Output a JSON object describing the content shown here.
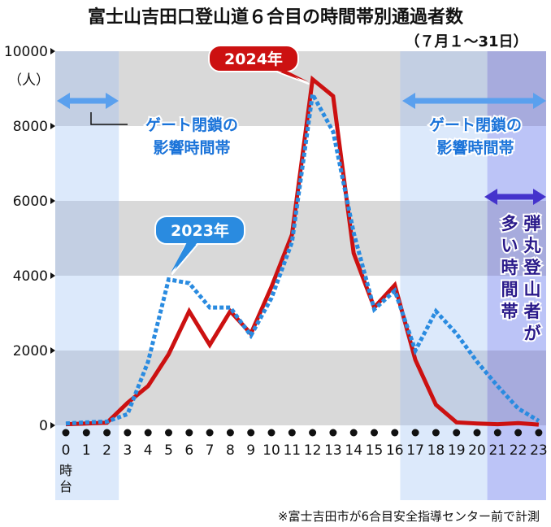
{
  "title": "富士山吉田口登山道６合目の時間帯別通過者数",
  "subtitle": "（７月１～31日）",
  "footnote": "※富士吉田市が6合目安全指導センター前で計測",
  "colors": {
    "band_gray": "#d9d9d9",
    "gate_light": "#dce9fb",
    "gate_mid": "#c3cfe3",
    "bullet_light": "#bcc4f7",
    "bullet_mid": "#a7abdd",
    "series_2024": "#cc1111",
    "series_2023": "#2a8be0",
    "arrow_gate": "#5aa0ee",
    "arrow_bullet": "#4433cc",
    "annotation_text": "#1a73d9",
    "bullet_text": "#2a1a8a"
  },
  "annotations": {
    "gate_left": "ゲート閉鎖の\n影響時間帯",
    "gate_right": "ゲート閉鎖の\n影響時間帯",
    "bullet": "弾丸登山者が多い時間帯",
    "bullet_col1": "弾丸登山者が",
    "bullet_col2": "多い時間帯"
  },
  "chart_data": {
    "type": "line",
    "title": "富士山吉田口登山道６合目の時間帯別通過者数",
    "subtitle": "（７月１～31日）",
    "ylabel": "（人）",
    "xlabel": "",
    "x_unit_label": "時台",
    "ylim": [
      0,
      10000
    ],
    "yticks": [
      0,
      2000,
      4000,
      6000,
      8000,
      10000
    ],
    "ytick_labels": [
      "0",
      "2000",
      "4000",
      "6000",
      "8000",
      "10000"
    ],
    "grid": false,
    "x": [
      0,
      1,
      2,
      3,
      4,
      5,
      6,
      7,
      8,
      9,
      10,
      11,
      12,
      13,
      14,
      15,
      16,
      17,
      18,
      19,
      20,
      21,
      22,
      23
    ],
    "x_labels": [
      "0",
      "1",
      "2",
      "3",
      "4",
      "5",
      "6",
      "7",
      "8",
      "9",
      "10",
      "11",
      "12",
      "13",
      "14",
      "15",
      "16",
      "17",
      "18",
      "19",
      "20",
      "21",
      "22",
      "23"
    ],
    "series": [
      {
        "name": "2023年",
        "style": "dashed",
        "values": [
          50,
          80,
          100,
          300,
          1700,
          3900,
          3800,
          3150,
          3150,
          2400,
          3400,
          4900,
          8850,
          7850,
          5150,
          3100,
          3600,
          2000,
          3050,
          2450,
          1700,
          1050,
          450,
          120
        ]
      },
      {
        "name": "2024年",
        "style": "solid",
        "values": [
          30,
          50,
          70,
          600,
          1050,
          1900,
          3050,
          2150,
          3050,
          2450,
          3700,
          5100,
          9250,
          8800,
          4600,
          3150,
          3750,
          1750,
          550,
          80,
          50,
          30,
          60,
          20
        ]
      }
    ],
    "shaded_ranges": [
      {
        "label": "ゲート閉鎖の影響時間帯",
        "from_hour": 0,
        "to_hour": 2
      },
      {
        "label": "ゲート閉鎖の影響時間帯",
        "from_hour": 17,
        "to_hour": 23
      },
      {
        "label": "弾丸登山者が多い時間帯",
        "from_hour": 21,
        "to_hour": 23
      }
    ]
  }
}
